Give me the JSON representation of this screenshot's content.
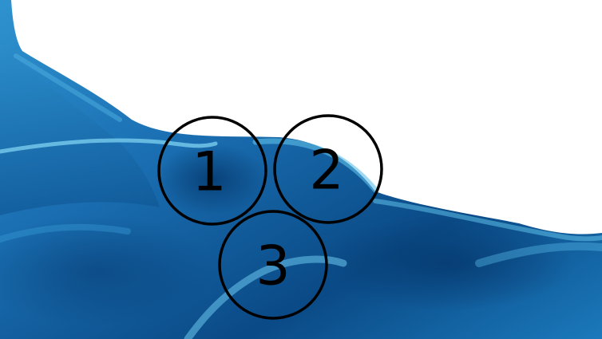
{
  "image": {
    "subject": "blue-silk-wave",
    "background_color": "#ffffff",
    "fabric_colors": {
      "dark": "#0a4a86",
      "mid": "#1a6fb2",
      "light": "#3ea8d8",
      "highlight": "#7fd3f2"
    }
  },
  "markers": [
    {
      "id": "marker-1",
      "label": "1"
    },
    {
      "id": "marker-2",
      "label": "2"
    },
    {
      "id": "marker-3",
      "label": "3"
    }
  ],
  "marker_style": {
    "stroke_color": "#000000",
    "text_color": "#000000"
  }
}
